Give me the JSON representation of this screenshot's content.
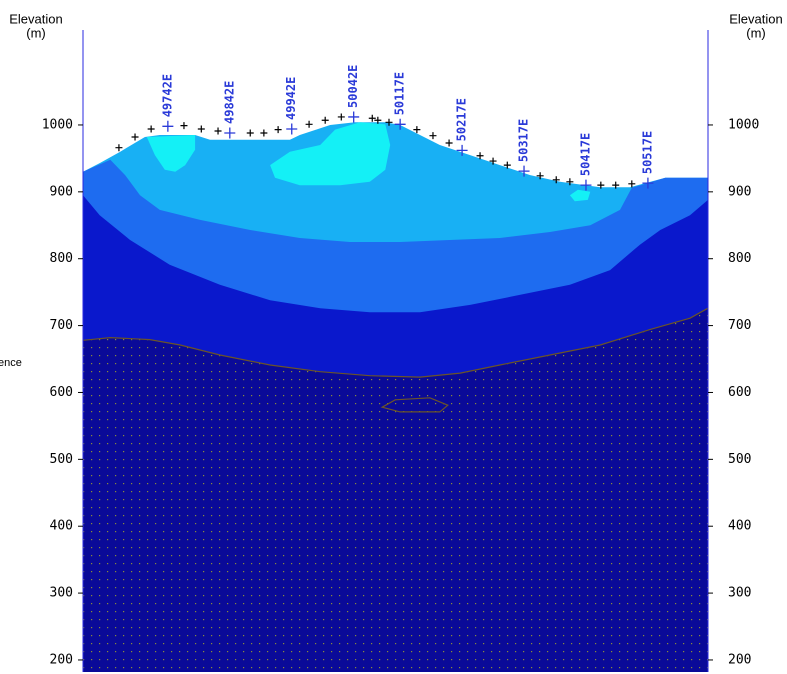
{
  "chart_data": {
    "type": "section",
    "y_label": "Elevation",
    "y_unit": "(m)",
    "side_note": "ence",
    "xlim": [
      49605,
      50614
    ],
    "ylim": [
      182,
      1142
    ],
    "yticks": [
      200,
      300,
      400,
      500,
      600,
      700,
      800,
      900,
      1000
    ],
    "axis_color": "#2a2ae0",
    "series": [
      {
        "color": "#18b0f4",
        "fill": "below",
        "x": [
          49605,
          49632,
          49665,
          49705,
          49729,
          49786,
          49810,
          49939,
          49955,
          50004,
          50044,
          50093,
          50117,
          50149,
          50181,
          50230,
          50278,
          50327,
          50375,
          50440,
          50488,
          50545,
          50614
        ],
        "values": [
          930,
          943,
          960,
          982,
          985,
          985,
          978,
          978,
          985,
          1000,
          1004,
          1004,
          1000,
          985,
          970,
          955,
          940,
          925,
          915,
          907,
          907,
          921,
          921
        ]
      },
      {
        "color": "#1e6cf0",
        "fill": "below",
        "x": [
          49605,
          49649,
          49673,
          49697,
          49729,
          49794,
          49875,
          49955,
          50036,
          50117,
          50197,
          50278,
          50359,
          50424,
          50472,
          50491,
          50545,
          50614
        ],
        "values": [
          930,
          948,
          925,
          895,
          873,
          858,
          843,
          831,
          825,
          825,
          828,
          831,
          840,
          850,
          873,
          906,
          921,
          921
        ]
      },
      {
        "color": "#0a18cc",
        "fill": "below",
        "x": [
          49605,
          49632,
          49681,
          49745,
          49826,
          49907,
          49988,
          50068,
          50149,
          50230,
          50311,
          50391,
          50456,
          50504,
          50537,
          50585,
          50614
        ],
        "values": [
          895,
          865,
          828,
          791,
          761,
          738,
          726,
          720,
          720,
          731,
          746,
          761,
          783,
          821,
          843,
          865,
          888
        ]
      },
      {
        "color": "#0a0a98",
        "fill": "below",
        "pattern": "dots",
        "line_color": "#6b5428",
        "x": [
          49605,
          49649,
          49713,
          49762,
          49826,
          49907,
          49988,
          50068,
          50149,
          50214,
          50278,
          50359,
          50440,
          50520,
          50585,
          50614
        ],
        "values": [
          678,
          682,
          679,
          671,
          656,
          641,
          631,
          625,
          623,
          629,
          641,
          656,
          671,
          694,
          711,
          726
        ]
      },
      {
        "color": "#14f0f6",
        "fill": "closed",
        "x": [
          49708,
          49786,
          49786,
          49770,
          49754,
          49737,
          49721
        ],
        "values": [
          982,
          985,
          963,
          940,
          930,
          933,
          955
        ]
      },
      {
        "color": "#14f0f6",
        "fill": "closed",
        "x": [
          49907,
          49939,
          49988,
          50012,
          50052,
          50093,
          50101,
          50093,
          50068,
          50020,
          49955,
          49915
        ],
        "values": [
          940,
          960,
          970,
          993,
          1004,
          1001,
          970,
          933,
          915,
          910,
          910,
          921
        ]
      },
      {
        "color": "#14f0f6",
        "fill": "closed",
        "x": [
          50391,
          50404,
          50424,
          50420,
          50399
        ],
        "values": [
          895,
          903,
          900,
          888,
          886
        ]
      },
      {
        "fill": "outline",
        "line_color": "#6b5428",
        "x": [
          50088,
          50109,
          50165,
          50194,
          50181,
          50117
        ],
        "values": [
          578,
          589,
          592,
          581,
          571,
          571
        ]
      }
    ],
    "topography": {
      "color": "#000000",
      "x": [
        49663,
        49689,
        49715,
        49768,
        49796,
        49823,
        49875,
        49897,
        49920,
        49970,
        49996,
        50022,
        50072,
        50081,
        50099,
        50144,
        50170,
        50196,
        50246,
        50267,
        50290,
        50343,
        50369,
        50391,
        50441,
        50465,
        50491
      ],
      "values": [
        966,
        982,
        994,
        999,
        994,
        991,
        988,
        988,
        993,
        1001,
        1007,
        1012,
        1010,
        1007,
        1004,
        993,
        984,
        973,
        954,
        946,
        940,
        924,
        918,
        915,
        910,
        910,
        912
      ]
    },
    "stations": {
      "color": "#2a3ad8",
      "labels": [
        "49742E",
        "49842E",
        "49942E",
        "50042E",
        "50117E",
        "50217E",
        "50317E",
        "50417E",
        "50517E"
      ],
      "x": [
        49742,
        49842,
        49942,
        50042,
        50117,
        50217,
        50317,
        50417,
        50517
      ],
      "values": [
        998,
        988,
        994,
        1012,
        1001,
        962,
        931,
        910,
        913
      ]
    }
  }
}
